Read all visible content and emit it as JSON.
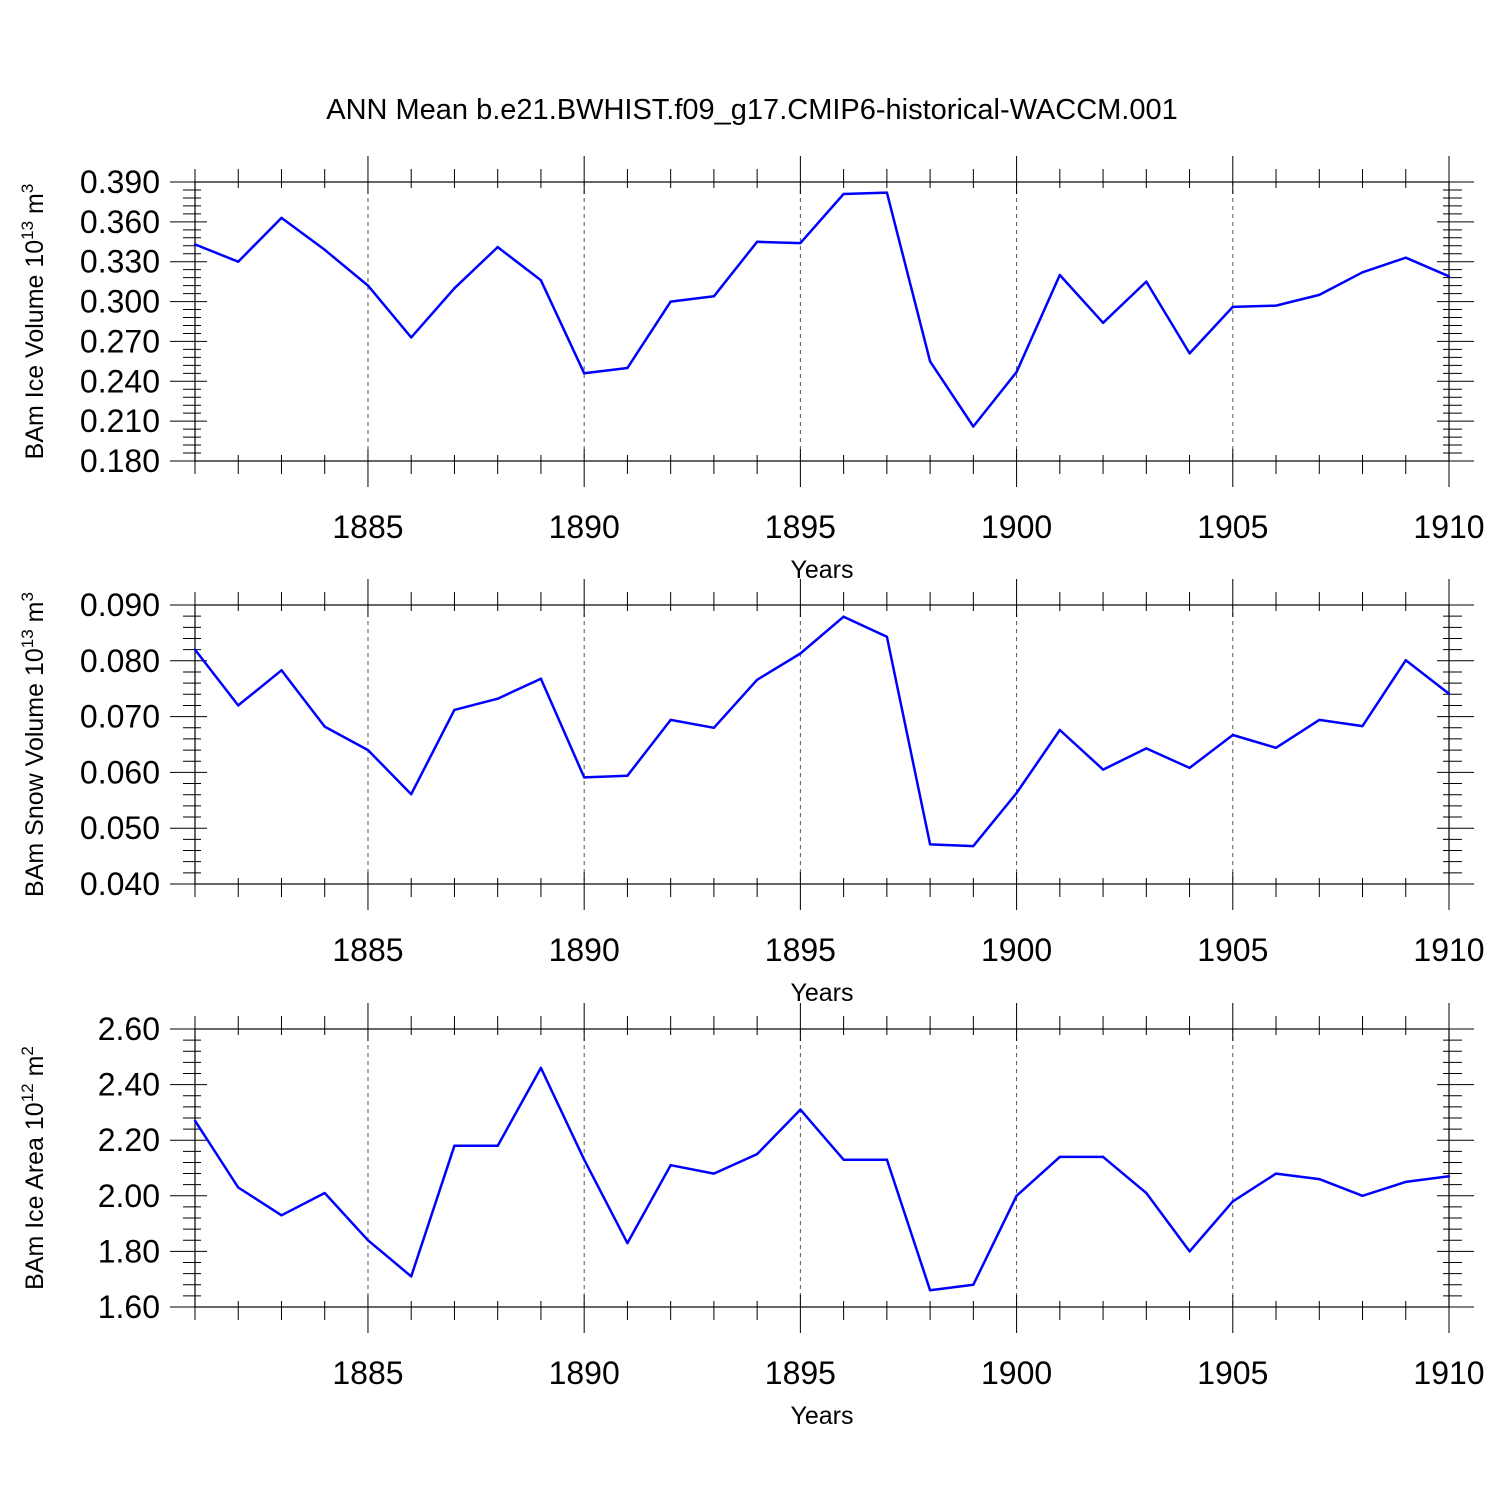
{
  "title": "ANN Mean b.e21.BWHIST.f09_g17.CMIP6-historical-WACCM.001",
  "colors": {
    "series": "#0000ff",
    "axes": "#000000",
    "grid": "#555555",
    "background": "#ffffff"
  },
  "chart_data": [
    {
      "type": "line",
      "ylabel": {
        "base": "BAm Ice Volume 10",
        "exp": "13",
        "unit": " m",
        "unit_exp": "3"
      },
      "xlabel": "Years",
      "xlim": [
        1881,
        1910
      ],
      "ylim": [
        0.18,
        0.39
      ],
      "yticks": [
        "0.180",
        "0.210",
        "0.240",
        "0.270",
        "0.300",
        "0.330",
        "0.360",
        "0.390"
      ],
      "xticks": [
        "1885",
        "1890",
        "1895",
        "1900",
        "1905",
        "1910"
      ],
      "grid": "dashed vertical at major x ticks",
      "x": [
        1881,
        1882,
        1883,
        1884,
        1885,
        1886,
        1887,
        1888,
        1889,
        1890,
        1891,
        1892,
        1893,
        1894,
        1895,
        1896,
        1897,
        1898,
        1899,
        1900,
        1901,
        1902,
        1903,
        1904,
        1905,
        1906,
        1907,
        1908,
        1909,
        1910
      ],
      "values": [
        0.343,
        0.33,
        0.363,
        0.339,
        0.312,
        0.273,
        0.31,
        0.341,
        0.316,
        0.246,
        0.25,
        0.3,
        0.304,
        0.345,
        0.344,
        0.381,
        0.382,
        0.255,
        0.206,
        0.247,
        0.32,
        0.284,
        0.315,
        0.261,
        0.296,
        0.297,
        0.305,
        0.322,
        0.333,
        0.319
      ]
    },
    {
      "type": "line",
      "ylabel": {
        "base": "BAm Snow Volume 10",
        "exp": "13",
        "unit": " m",
        "unit_exp": "3"
      },
      "xlabel": "Years",
      "xlim": [
        1881,
        1910
      ],
      "ylim": [
        0.04,
        0.09
      ],
      "yticks": [
        "0.040",
        "0.050",
        "0.060",
        "0.070",
        "0.080",
        "0.090"
      ],
      "xticks": [
        "1885",
        "1890",
        "1895",
        "1900",
        "1905",
        "1910"
      ],
      "grid": "dashed vertical at major x ticks",
      "x": [
        1881,
        1882,
        1883,
        1884,
        1885,
        1886,
        1887,
        1888,
        1889,
        1890,
        1891,
        1892,
        1893,
        1894,
        1895,
        1896,
        1897,
        1898,
        1899,
        1900,
        1901,
        1902,
        1903,
        1904,
        1905,
        1906,
        1907,
        1908,
        1909,
        1910
      ],
      "values": [
        0.082,
        0.072,
        0.0783,
        0.0682,
        0.064,
        0.0561,
        0.0712,
        0.0732,
        0.0768,
        0.0591,
        0.0594,
        0.0694,
        0.068,
        0.0766,
        0.0813,
        0.0879,
        0.0843,
        0.0471,
        0.0468,
        0.0563,
        0.0676,
        0.0605,
        0.0643,
        0.0608,
        0.0667,
        0.0644,
        0.0694,
        0.0683,
        0.0801,
        0.0741
      ]
    },
    {
      "type": "line",
      "ylabel": {
        "base": "BAm Ice Area 10",
        "exp": "12",
        "unit": " m",
        "unit_exp": "2"
      },
      "xlabel": "Years",
      "xlim": [
        1881,
        1910
      ],
      "ylim": [
        1.6,
        2.6
      ],
      "yticks": [
        "1.60",
        "1.80",
        "2.00",
        "2.20",
        "2.40",
        "2.60"
      ],
      "xticks": [
        "1885",
        "1890",
        "1895",
        "1900",
        "1905",
        "1910"
      ],
      "grid": "dashed vertical at major x ticks",
      "x": [
        1881,
        1882,
        1883,
        1884,
        1885,
        1886,
        1887,
        1888,
        1889,
        1890,
        1891,
        1892,
        1893,
        1894,
        1895,
        1896,
        1897,
        1898,
        1899,
        1900,
        1901,
        1902,
        1903,
        1904,
        1905,
        1906,
        1907,
        1908,
        1909,
        1910
      ],
      "values": [
        2.27,
        2.03,
        1.93,
        2.01,
        1.84,
        1.71,
        2.18,
        2.18,
        2.46,
        2.13,
        1.83,
        2.11,
        2.08,
        2.15,
        2.31,
        2.13,
        2.13,
        1.66,
        1.68,
        2.0,
        2.14,
        2.14,
        2.01,
        1.8,
        1.98,
        2.08,
        2.06,
        2.0,
        2.05,
        2.07
      ]
    }
  ]
}
